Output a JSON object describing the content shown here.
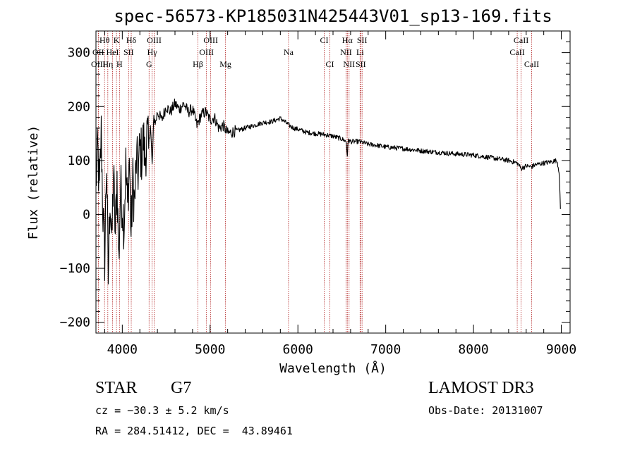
{
  "chart_data": {
    "type": "line",
    "title": "spec-56573-KP185031N425443V01_sp13-169.fits",
    "xlabel": "Wavelength (Å)",
    "ylabel": "Flux (relative)",
    "xlim": [
      3700,
      9100
    ],
    "ylim": [
      -220,
      340
    ],
    "x_ticks": [
      4000,
      5000,
      6000,
      7000,
      8000,
      9000
    ],
    "y_ticks": [
      -200,
      -100,
      0,
      100,
      200,
      300
    ],
    "grid": false,
    "line_color": "#000000",
    "marker_color": "#b22222",
    "spectrum_anchors": [
      [
        3700,
        60
      ],
      [
        3720,
        120
      ],
      [
        3740,
        40
      ],
      [
        3760,
        150
      ],
      [
        3780,
        0
      ],
      [
        3800,
        -80
      ],
      [
        3820,
        100
      ],
      [
        3840,
        -120
      ],
      [
        3860,
        40
      ],
      [
        3880,
        -60
      ],
      [
        3900,
        80
      ],
      [
        3920,
        -40
      ],
      [
        3940,
        70
      ],
      [
        3960,
        -90
      ],
      [
        3980,
        50
      ],
      [
        4000,
        20
      ],
      [
        4020,
        -20
      ],
      [
        4040,
        90
      ],
      [
        4060,
        10
      ],
      [
        4080,
        110
      ],
      [
        4100,
        -40
      ],
      [
        4120,
        60
      ],
      [
        4140,
        20
      ],
      [
        4160,
        100
      ],
      [
        4180,
        80
      ],
      [
        4200,
        120
      ],
      [
        4220,
        110
      ],
      [
        4240,
        140
      ],
      [
        4260,
        100
      ],
      [
        4280,
        150
      ],
      [
        4300,
        120
      ],
      [
        4320,
        170
      ],
      [
        4340,
        90
      ],
      [
        4360,
        180
      ],
      [
        4380,
        170
      ],
      [
        4400,
        190
      ],
      [
        4450,
        175
      ],
      [
        4500,
        200
      ],
      [
        4550,
        190
      ],
      [
        4600,
        205
      ],
      [
        4650,
        195
      ],
      [
        4700,
        205
      ],
      [
        4750,
        190
      ],
      [
        4800,
        195
      ],
      [
        4850,
        165
      ],
      [
        4900,
        185
      ],
      [
        4950,
        190
      ],
      [
        5000,
        175
      ],
      [
        5050,
        180
      ],
      [
        5100,
        160
      ],
      [
        5150,
        165
      ],
      [
        5200,
        150
      ],
      [
        5300,
        155
      ],
      [
        5400,
        160
      ],
      [
        5500,
        165
      ],
      [
        5600,
        170
      ],
      [
        5700,
        172
      ],
      [
        5800,
        178
      ],
      [
        5850,
        172
      ],
      [
        5900,
        165
      ],
      [
        5950,
        160
      ],
      [
        6000,
        158
      ],
      [
        6100,
        152
      ],
      [
        6200,
        150
      ],
      [
        6300,
        148
      ],
      [
        6400,
        145
      ],
      [
        6500,
        140
      ],
      [
        6550,
        135
      ],
      [
        6563,
        110
      ],
      [
        6575,
        138
      ],
      [
        6600,
        135
      ],
      [
        6700,
        135
      ],
      [
        6800,
        130
      ],
      [
        6900,
        128
      ],
      [
        7000,
        125
      ],
      [
        7200,
        122
      ],
      [
        7400,
        118
      ],
      [
        7600,
        115
      ],
      [
        7800,
        112
      ],
      [
        8000,
        110
      ],
      [
        8200,
        105
      ],
      [
        8400,
        100
      ],
      [
        8500,
        95
      ],
      [
        8542,
        85
      ],
      [
        8600,
        90
      ],
      [
        8662,
        88
      ],
      [
        8700,
        92
      ],
      [
        8800,
        95
      ],
      [
        8900,
        98
      ],
      [
        8950,
        100
      ],
      [
        8975,
        80
      ],
      [
        8990,
        10
      ]
    ],
    "lines": [
      {
        "label": "Hθ",
        "wavelength": 3798,
        "row": 0
      },
      {
        "label": "K",
        "wavelength": 3934,
        "row": 0
      },
      {
        "label": "Hδ",
        "wavelength": 4102,
        "row": 0
      },
      {
        "label": "OIII",
        "wavelength": 4363,
        "row": 0
      },
      {
        "label": "OIII",
        "wavelength": 5007,
        "row": 0
      },
      {
        "label": "CI",
        "wavelength": 6300,
        "row": 0
      },
      {
        "label": "Hα",
        "wavelength": 6563,
        "row": 0
      },
      {
        "label": "SII",
        "wavelength": 6731,
        "row": 0
      },
      {
        "label": "CaII",
        "wavelength": 8542,
        "row": 0
      },
      {
        "label": "OII",
        "wavelength": 3727,
        "row": 1
      },
      {
        "label": "HeI",
        "wavelength": 3889,
        "row": 1
      },
      {
        "label": "SII",
        "wavelength": 4072,
        "row": 1
      },
      {
        "label": "Hγ",
        "wavelength": 4340,
        "row": 1
      },
      {
        "label": "OIII",
        "wavelength": 4959,
        "row": 1
      },
      {
        "label": "Na",
        "wavelength": 5893,
        "row": 1
      },
      {
        "label": "NII",
        "wavelength": 6548,
        "row": 1
      },
      {
        "label": "Li",
        "wavelength": 6708,
        "row": 1
      },
      {
        "label": "CaII",
        "wavelength": 8498,
        "row": 1
      },
      {
        "label": "OIII",
        "wavelength": 3727,
        "row": 2
      },
      {
        "label": "Hη",
        "wavelength": 3835,
        "row": 2
      },
      {
        "label": "H",
        "wavelength": 3968,
        "row": 2
      },
      {
        "label": "G",
        "wavelength": 4305,
        "row": 2
      },
      {
        "label": "Hβ",
        "wavelength": 4861,
        "row": 2
      },
      {
        "label": "Mg",
        "wavelength": 5175,
        "row": 2
      },
      {
        "label": "CI",
        "wavelength": 6364,
        "row": 2
      },
      {
        "label": "NII",
        "wavelength": 6583,
        "row": 2
      },
      {
        "label": "SII",
        "wavelength": 6716,
        "row": 2
      },
      {
        "label": "CaII",
        "wavelength": 8662,
        "row": 2
      }
    ]
  },
  "info": {
    "object_class": "STAR",
    "subclass": "G7",
    "survey": "LAMOST DR3",
    "redshift": "cz = −30.3 ± 5.2 km/s",
    "obs_date": "Obs-Date: 20131007",
    "coords": "RA = 284.51412, DEC =  43.89461"
  }
}
